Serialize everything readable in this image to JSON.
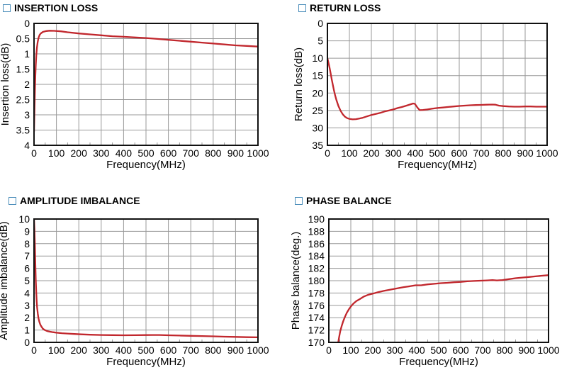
{
  "colors": {
    "curve": "#c1272d",
    "grid": "#999999",
    "axis": "#111111",
    "title_square": "#4d8fbb",
    "text": "#000000",
    "background": "#ffffff"
  },
  "chart_data": [
    {
      "type": "line",
      "id": "insertion-loss",
      "title": "INSERTION LOSS",
      "xlabel": "Frequency(MHz)",
      "ylabel": "Insertion loss(dB)",
      "xlim": [
        0,
        1000
      ],
      "ylim": [
        0,
        4
      ],
      "y_axis_inverted": true,
      "y_top": 0,
      "y_bottom": 4,
      "grid": true,
      "x_ticks": [
        "0",
        "100",
        "200",
        "300",
        "400",
        "500",
        "600",
        "700",
        "800",
        "900",
        "1000"
      ],
      "y_ticks": [
        "0",
        "0.5",
        "1",
        "1.5",
        "2",
        "2.5",
        "3",
        "3.5",
        "4"
      ],
      "series_name": "Insertion loss",
      "points": [
        [
          0,
          3.55
        ],
        [
          2,
          2.9
        ],
        [
          4,
          2.2
        ],
        [
          6,
          1.7
        ],
        [
          8,
          1.35
        ],
        [
          10,
          1.05
        ],
        [
          13,
          0.8
        ],
        [
          16,
          0.62
        ],
        [
          20,
          0.48
        ],
        [
          25,
          0.38
        ],
        [
          30,
          0.33
        ],
        [
          40,
          0.28
        ],
        [
          55,
          0.25
        ],
        [
          70,
          0.24
        ],
        [
          90,
          0.245
        ],
        [
          120,
          0.26
        ],
        [
          150,
          0.29
        ],
        [
          200,
          0.33
        ],
        [
          250,
          0.36
        ],
        [
          300,
          0.39
        ],
        [
          350,
          0.42
        ],
        [
          400,
          0.44
        ],
        [
          450,
          0.46
        ],
        [
          500,
          0.48
        ],
        [
          550,
          0.51
        ],
        [
          600,
          0.54
        ],
        [
          650,
          0.57
        ],
        [
          700,
          0.6
        ],
        [
          750,
          0.63
        ],
        [
          800,
          0.66
        ],
        [
          850,
          0.69
        ],
        [
          900,
          0.72
        ],
        [
          950,
          0.74
        ],
        [
          1000,
          0.76
        ]
      ]
    },
    {
      "type": "line",
      "id": "return-loss",
      "title": "RETURN LOSS",
      "xlabel": "Frequency(MHz)",
      "ylabel": "Return loss(dB)",
      "xlim": [
        0,
        1000
      ],
      "ylim": [
        0,
        35
      ],
      "y_axis_inverted": true,
      "y_top": 0,
      "y_bottom": 35,
      "grid": true,
      "x_ticks": [
        "0",
        "100",
        "200",
        "300",
        "400",
        "500",
        "600",
        "700",
        "800",
        "900",
        "1000"
      ],
      "y_ticks": [
        "0",
        "5",
        "10",
        "15",
        "20",
        "25",
        "30",
        "35"
      ],
      "series_name": "Return loss",
      "points": [
        [
          0,
          10
        ],
        [
          5,
          11.3
        ],
        [
          10,
          12.8
        ],
        [
          15,
          14.5
        ],
        [
          20,
          16.2
        ],
        [
          25,
          17.8
        ],
        [
          30,
          19.3
        ],
        [
          35,
          20.6
        ],
        [
          40,
          21.8
        ],
        [
          45,
          22.8
        ],
        [
          50,
          23.7
        ],
        [
          60,
          25.1
        ],
        [
          70,
          26.1
        ],
        [
          80,
          26.8
        ],
        [
          90,
          27.2
        ],
        [
          100,
          27.4
        ],
        [
          115,
          27.55
        ],
        [
          130,
          27.5
        ],
        [
          145,
          27.3
        ],
        [
          160,
          27.1
        ],
        [
          180,
          26.7
        ],
        [
          200,
          26.3
        ],
        [
          220,
          26.0
        ],
        [
          240,
          25.7
        ],
        [
          260,
          25.3
        ],
        [
          280,
          25.0
        ],
        [
          300,
          24.7
        ],
        [
          320,
          24.3
        ],
        [
          340,
          24.0
        ],
        [
          360,
          23.6
        ],
        [
          375,
          23.3
        ],
        [
          390,
          23.0
        ],
        [
          398,
          23.1
        ],
        [
          410,
          24.2
        ],
        [
          420,
          24.9
        ],
        [
          435,
          24.85
        ],
        [
          455,
          24.7
        ],
        [
          475,
          24.5
        ],
        [
          500,
          24.3
        ],
        [
          525,
          24.15
        ],
        [
          550,
          24.0
        ],
        [
          575,
          23.85
        ],
        [
          600,
          23.7
        ],
        [
          625,
          23.6
        ],
        [
          650,
          23.5
        ],
        [
          675,
          23.45
        ],
        [
          700,
          23.4
        ],
        [
          725,
          23.35
        ],
        [
          750,
          23.3
        ],
        [
          765,
          23.35
        ],
        [
          780,
          23.6
        ],
        [
          800,
          23.75
        ],
        [
          825,
          23.85
        ],
        [
          850,
          23.9
        ],
        [
          875,
          23.9
        ],
        [
          900,
          23.85
        ],
        [
          925,
          23.85
        ],
        [
          950,
          23.9
        ],
        [
          975,
          23.9
        ],
        [
          1000,
          23.9
        ]
      ]
    },
    {
      "type": "line",
      "id": "amplitude-imbalance",
      "title": "AMPLITUDE IMBALANCE",
      "xlabel": "Frequency(MHz)",
      "ylabel": "Amplitude imbalance(dB)",
      "xlim": [
        0,
        1000
      ],
      "ylim": [
        0,
        10
      ],
      "y_axis_inverted": false,
      "y_top": 10,
      "y_bottom": 0,
      "grid": true,
      "x_ticks": [
        "0",
        "100",
        "200",
        "300",
        "400",
        "500",
        "600",
        "700",
        "800",
        "900",
        "1000"
      ],
      "y_ticks": [
        "10",
        "9",
        "8",
        "7",
        "6",
        "5",
        "4",
        "3",
        "2",
        "1",
        "0"
      ],
      "series_name": "Amplitude imbalance",
      "points": [
        [
          0,
          10
        ],
        [
          2,
          9.2
        ],
        [
          4,
          7.8
        ],
        [
          6,
          6.3
        ],
        [
          8,
          5.0
        ],
        [
          10,
          4.0
        ],
        [
          12,
          3.3
        ],
        [
          14,
          2.8
        ],
        [
          17,
          2.3
        ],
        [
          20,
          1.95
        ],
        [
          24,
          1.65
        ],
        [
          28,
          1.45
        ],
        [
          33,
          1.28
        ],
        [
          40,
          1.1
        ],
        [
          48,
          1.0
        ],
        [
          58,
          0.92
        ],
        [
          70,
          0.87
        ],
        [
          85,
          0.82
        ],
        [
          100,
          0.79
        ],
        [
          125,
          0.74
        ],
        [
          150,
          0.71
        ],
        [
          180,
          0.68
        ],
        [
          210,
          0.65
        ],
        [
          250,
          0.62
        ],
        [
          300,
          0.6
        ],
        [
          350,
          0.585
        ],
        [
          400,
          0.575
        ],
        [
          450,
          0.58
        ],
        [
          500,
          0.59
        ],
        [
          530,
          0.6
        ],
        [
          560,
          0.6
        ],
        [
          600,
          0.575
        ],
        [
          650,
          0.55
        ],
        [
          700,
          0.53
        ],
        [
          750,
          0.51
        ],
        [
          800,
          0.49
        ],
        [
          850,
          0.46
        ],
        [
          900,
          0.44
        ],
        [
          950,
          0.42
        ],
        [
          1000,
          0.41
        ]
      ]
    },
    {
      "type": "line",
      "id": "phase-balance",
      "title": "PHASE BALANCE",
      "xlabel": "Frequency(MHz)",
      "ylabel": "Phase balance(deg.)",
      "xlim": [
        0,
        1000
      ],
      "ylim": [
        170,
        190
      ],
      "y_axis_inverted": false,
      "y_top": 190,
      "y_bottom": 170,
      "grid": true,
      "x_ticks": [
        "0",
        "100",
        "200",
        "300",
        "400",
        "500",
        "600",
        "700",
        "800",
        "900",
        "1000"
      ],
      "y_ticks": [
        "190",
        "188",
        "186",
        "184",
        "182",
        "180",
        "178",
        "176",
        "174",
        "172",
        "170"
      ],
      "series_name": "Phase balance",
      "points": [
        [
          43,
          170
        ],
        [
          47,
          170.9
        ],
        [
          52,
          171.8
        ],
        [
          58,
          172.6
        ],
        [
          65,
          173.4
        ],
        [
          73,
          174.1
        ],
        [
          82,
          174.8
        ],
        [
          92,
          175.4
        ],
        [
          100,
          175.8
        ],
        [
          112,
          176.3
        ],
        [
          125,
          176.7
        ],
        [
          140,
          177.0
        ],
        [
          158,
          177.4
        ],
        [
          178,
          177.7
        ],
        [
          200,
          177.9
        ],
        [
          225,
          178.15
        ],
        [
          250,
          178.35
        ],
        [
          280,
          178.55
        ],
        [
          310,
          178.75
        ],
        [
          340,
          178.95
        ],
        [
          370,
          179.1
        ],
        [
          395,
          179.25
        ],
        [
          420,
          179.25
        ],
        [
          450,
          179.4
        ],
        [
          480,
          179.5
        ],
        [
          510,
          179.6
        ],
        [
          540,
          179.65
        ],
        [
          570,
          179.75
        ],
        [
          600,
          179.8
        ],
        [
          630,
          179.9
        ],
        [
          660,
          179.95
        ],
        [
          690,
          180.0
        ],
        [
          720,
          180.05
        ],
        [
          745,
          180.1
        ],
        [
          765,
          180.05
        ],
        [
          790,
          180.1
        ],
        [
          820,
          180.25
        ],
        [
          850,
          180.4
        ],
        [
          880,
          180.5
        ],
        [
          910,
          180.6
        ],
        [
          940,
          180.7
        ],
        [
          970,
          180.8
        ],
        [
          1000,
          180.9
        ]
      ]
    }
  ]
}
